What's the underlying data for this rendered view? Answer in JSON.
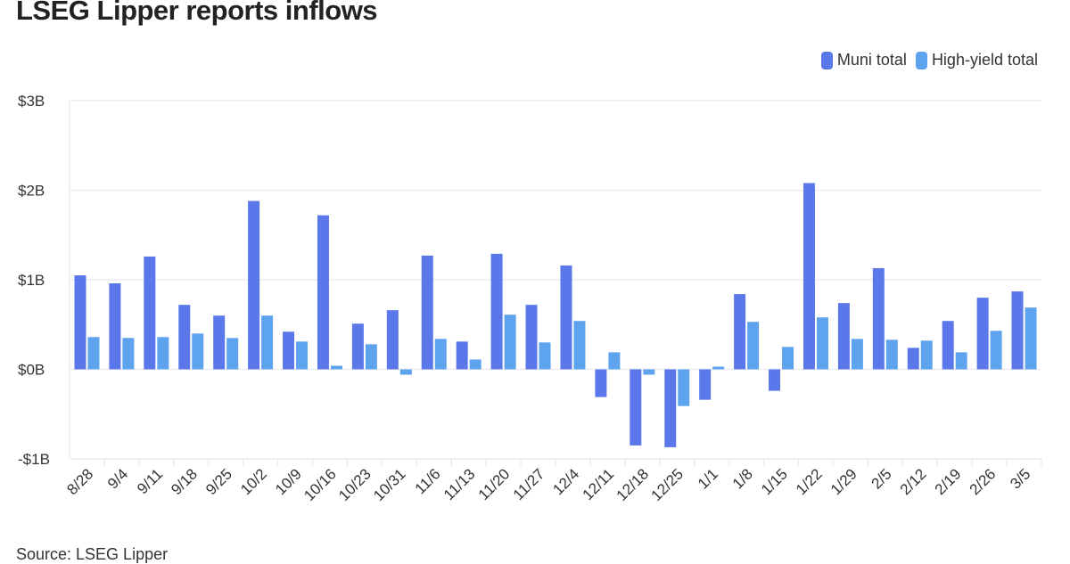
{
  "chart_data": {
    "type": "bar",
    "title": "LSEG Lipper reports inflows",
    "source": "Source: LSEG Lipper",
    "categories": [
      "8/28",
      "9/4",
      "9/11",
      "9/18",
      "9/25",
      "10/2",
      "10/9",
      "10/16",
      "10/23",
      "10/31",
      "11/6",
      "11/13",
      "11/20",
      "11/27",
      "12/4",
      "12/11",
      "12/18",
      "12/25",
      "1/1",
      "1/8",
      "1/15",
      "1/22",
      "1/29",
      "2/5",
      "2/12",
      "2/19",
      "2/26",
      "3/5"
    ],
    "series": [
      {
        "name": "Muni total",
        "color": "#5b78ea",
        "values": [
          1.05,
          0.96,
          1.26,
          0.72,
          0.6,
          1.88,
          0.42,
          1.72,
          0.51,
          0.66,
          1.27,
          0.31,
          1.29,
          0.72,
          1.16,
          -0.31,
          -0.85,
          -0.87,
          -0.34,
          0.84,
          -0.24,
          2.08,
          0.74,
          1.13,
          0.24,
          0.54,
          0.8,
          0.87
        ]
      },
      {
        "name": "High-yield total",
        "color": "#5ea3ee",
        "values": [
          0.36,
          0.35,
          0.36,
          0.4,
          0.35,
          0.6,
          0.31,
          0.04,
          0.28,
          -0.06,
          0.34,
          0.11,
          0.61,
          0.3,
          0.54,
          0.19,
          -0.06,
          -0.41,
          0.03,
          0.53,
          0.25,
          0.58,
          0.34,
          0.33,
          0.32,
          0.19,
          0.43,
          0.69
        ]
      }
    ],
    "yticks": [
      3,
      2,
      1,
      0,
      -1
    ],
    "ytick_labels": [
      "$3B",
      "$2B",
      "$1B",
      "$0B",
      "-$1B"
    ],
    "ylim": [
      -1,
      3
    ],
    "yunit": "$B",
    "grid": true,
    "legend": "top-right"
  }
}
